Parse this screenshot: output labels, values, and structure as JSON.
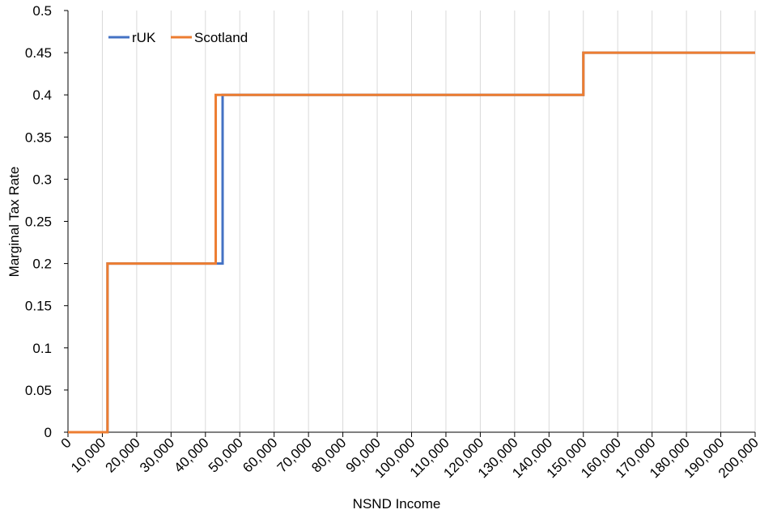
{
  "chart_data": {
    "type": "line",
    "title": "",
    "xlabel": "NSND Income",
    "ylabel": "Marginal Tax Rate",
    "xlim": [
      0,
      200000
    ],
    "ylim": [
      0,
      0.5
    ],
    "x_ticks": [
      0,
      10000,
      20000,
      30000,
      40000,
      50000,
      60000,
      70000,
      80000,
      90000,
      100000,
      110000,
      120000,
      130000,
      140000,
      150000,
      160000,
      170000,
      180000,
      190000,
      200000
    ],
    "x_tick_labels": [
      "0",
      "10,000",
      "20,000",
      "30,000",
      "40,000",
      "50,000",
      "60,000",
      "70,000",
      "80,000",
      "90,000",
      "100,000",
      "110,000",
      "120,000",
      "130,000",
      "140,000",
      "150,000",
      "160,000",
      "170,000",
      "180,000",
      "190,000",
      "200,000"
    ],
    "y_ticks": [
      0,
      0.05,
      0.1,
      0.15,
      0.2,
      0.25,
      0.3,
      0.35,
      0.4,
      0.45,
      0.5
    ],
    "y_tick_labels": [
      "0",
      "0.05",
      "0.1",
      "0.15",
      "0.2",
      "0.25",
      "0.3",
      "0.35",
      "0.4",
      "0.45",
      "0.5"
    ],
    "grid": "vertical",
    "legend": "top-left",
    "series": [
      {
        "name": "rUK",
        "color": "#4472C4",
        "step": "post",
        "x": [
          0,
          11500,
          45000,
          150000,
          200000
        ],
        "y": [
          0,
          0.2,
          0.4,
          0.45,
          0.45
        ]
      },
      {
        "name": "Scotland",
        "color": "#ED7D31",
        "step": "post",
        "x": [
          0,
          11500,
          43000,
          150000,
          200000
        ],
        "y": [
          0,
          0.2,
          0.4,
          0.45,
          0.45
        ]
      }
    ]
  }
}
